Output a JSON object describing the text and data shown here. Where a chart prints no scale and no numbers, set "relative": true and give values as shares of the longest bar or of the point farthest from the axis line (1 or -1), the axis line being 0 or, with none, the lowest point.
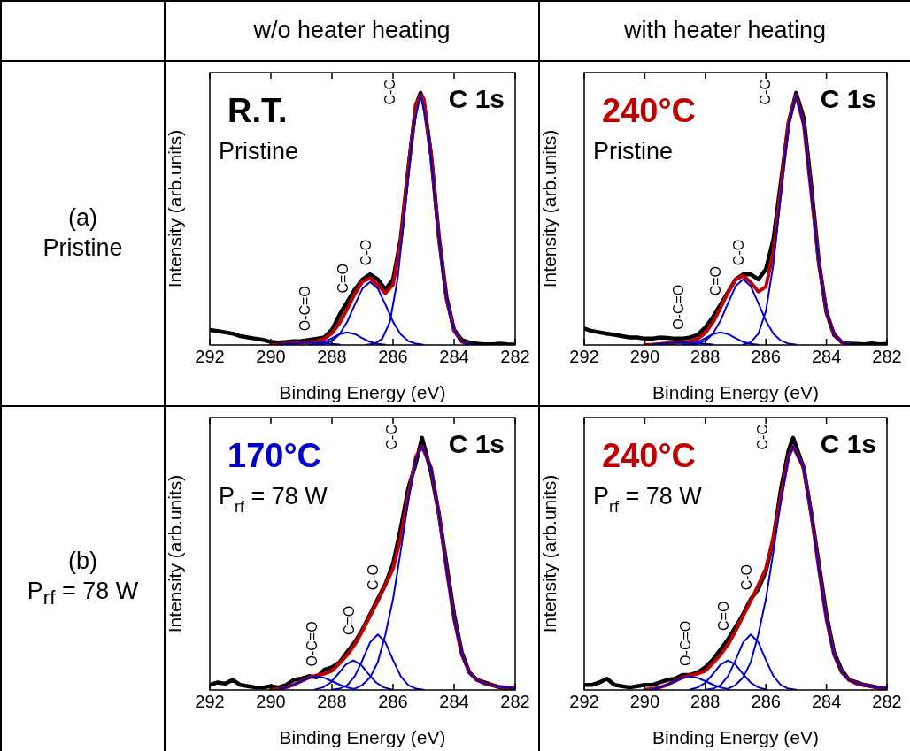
{
  "chart_data": [
    {
      "type": "line",
      "title": "w/o heater heating",
      "subtitle": "(a)\nPristine",
      "xlabel": "Binding Energy (eV)",
      "ylabel": "Intensity (arb.units)",
      "xlim": [
        292,
        282
      ],
      "xticks": [
        292,
        290,
        288,
        286,
        284,
        282
      ],
      "relative": true,
      "series": [
        {
          "color": "#000000",
          "x": [
            292,
            291.75,
            291.5,
            291.25,
            291,
            290.75,
            290.5,
            290.25,
            290,
            289.75,
            289.5,
            289.25,
            289,
            288.75,
            288.5,
            288.25,
            288,
            287.75,
            287.5,
            287.25,
            287,
            286.75,
            286.5,
            286.25,
            286,
            285.75,
            285.5,
            285.25,
            285.1,
            285,
            284.75,
            284.5,
            284.25,
            284,
            283.75,
            283.5,
            283.25,
            283,
            282.75,
            282.5,
            282.25,
            282
          ],
          "values": [
            0.06,
            0.055,
            0.05,
            0.045,
            0.035,
            0.03,
            0.025,
            0.02,
            0.012,
            0.01,
            0.012,
            0.015,
            0.016,
            0.02,
            0.025,
            0.03,
            0.06,
            0.12,
            0.17,
            0.22,
            0.26,
            0.28,
            0.26,
            0.22,
            0.26,
            0.42,
            0.7,
            0.95,
            1.0,
            0.97,
            0.75,
            0.43,
            0.19,
            0.06,
            0.02,
            0.01,
            0.005,
            0.003,
            0.003,
            0.005,
            0.003,
            0.002
          ]
        },
        {
          "color": "#c00000",
          "x": [
            290,
            289.75,
            289.5,
            289.25,
            289,
            288.75,
            288.5,
            288.25,
            288,
            287.75,
            287.5,
            287.25,
            287,
            286.75,
            286.5,
            286.25,
            286,
            285.75,
            285.5,
            285.25,
            285.1,
            285,
            284.75,
            284.5,
            284.25,
            284,
            283.75,
            283.5
          ],
          "values": [
            0.001,
            0.002,
            0.004,
            0.007,
            0.009,
            0.011,
            0.014,
            0.024,
            0.047,
            0.087,
            0.143,
            0.203,
            0.252,
            0.264,
            0.238,
            0.205,
            0.239,
            0.41,
            0.701,
            0.953,
            0.99,
            0.977,
            0.749,
            0.427,
            0.181,
            0.057,
            0.013,
            0.002
          ]
        },
        {
          "color": "#0000cc",
          "x": [
            286.85,
            286.6,
            286.35,
            286.1,
            285.85,
            285.6,
            285.35,
            285.1,
            284.85,
            284.6,
            284.35,
            284.1,
            283.85,
            283.6,
            283.35
          ],
          "values": [
            0.001,
            0.005,
            0.025,
            0.093,
            0.262,
            0.548,
            0.854,
            0.99,
            0.854,
            0.548,
            0.262,
            0.093,
            0.025,
            0.005,
            0.001
          ]
        },
        {
          "color": "#0000cc",
          "x": [
            288.5,
            288.25,
            288,
            287.75,
            287.5,
            287.25,
            287,
            286.75,
            286.5,
            286.25,
            286,
            285.75,
            285.5,
            285.25,
            285
          ],
          "values": [
            0.001,
            0.005,
            0.016,
            0.042,
            0.092,
            0.16,
            0.224,
            0.25,
            0.224,
            0.16,
            0.092,
            0.042,
            0.016,
            0.005,
            0.001
          ]
        },
        {
          "color": "#0000cc",
          "x": [
            288.75,
            288.5,
            288.25,
            288,
            287.75,
            287.5,
            287.25,
            287,
            286.75,
            286.5,
            286.25
          ],
          "values": [
            0.001,
            0.004,
            0.012,
            0.027,
            0.043,
            0.05,
            0.043,
            0.027,
            0.012,
            0.004,
            0.001
          ]
        },
        {
          "color": "#0000cc",
          "x": [
            289.75,
            289.5,
            289.25,
            289,
            288.75,
            288.5,
            288.25,
            288,
            287.75
          ],
          "values": [
            0.002,
            0.004,
            0.007,
            0.009,
            0.01,
            0.009,
            0.007,
            0.004,
            0.002
          ]
        }
      ],
      "annotations": [
        "R.T.",
        "Pristine",
        "C 1s",
        "C-C",
        "C-O",
        "C=O",
        "O-C=O"
      ]
    },
    {
      "type": "line",
      "title": "with heater heating",
      "xlabel": "Binding Energy (eV)",
      "ylabel": "Intensity (arb.units)",
      "xlim": [
        292,
        282
      ],
      "xticks": [
        292,
        290,
        288,
        286,
        284,
        282
      ],
      "relative": true,
      "series": [
        {
          "color": "#000000",
          "x": [
            292,
            291.75,
            291.5,
            291.25,
            291,
            290.75,
            290.5,
            290.25,
            290,
            289.75,
            289.5,
            289.25,
            289,
            288.75,
            288.5,
            288.25,
            288,
            287.75,
            287.5,
            287.25,
            287,
            286.75,
            286.5,
            286.25,
            286,
            285.75,
            285.5,
            285.25,
            285,
            284.75,
            284.5,
            284.25,
            284,
            283.75,
            283.5,
            283.25,
            283,
            282.75,
            282.5,
            282.25,
            282
          ],
          "values": [
            0.065,
            0.055,
            0.05,
            0.045,
            0.04,
            0.035,
            0.03,
            0.03,
            0.025,
            0.025,
            0.03,
            0.028,
            0.025,
            0.025,
            0.03,
            0.04,
            0.07,
            0.11,
            0.16,
            0.21,
            0.26,
            0.28,
            0.28,
            0.26,
            0.3,
            0.42,
            0.65,
            0.88,
            1.0,
            0.9,
            0.63,
            0.33,
            0.13,
            0.04,
            0.012,
            0.005,
            0.004,
            0.003,
            0.006,
            0.003,
            0.004
          ]
        },
        {
          "color": "#c00000",
          "x": [
            290,
            289.75,
            289.5,
            289.25,
            289,
            288.75,
            288.5,
            288.25,
            288,
            287.75,
            287.5,
            287.25,
            287,
            286.75,
            286.5,
            286.25,
            286,
            285.75,
            285.5,
            285.25,
            285,
            284.75,
            284.5,
            284.25,
            284,
            283.75,
            283.5,
            283.25
          ],
          "values": [
            0.001,
            0.002,
            0.004,
            0.007,
            0.009,
            0.011,
            0.014,
            0.024,
            0.048,
            0.089,
            0.147,
            0.209,
            0.26,
            0.274,
            0.248,
            0.211,
            0.231,
            0.369,
            0.624,
            0.887,
            0.99,
            0.873,
            0.601,
            0.322,
            0.134,
            0.044,
            0.011,
            0.002
          ]
        },
        {
          "color": "#0000cc",
          "x": [
            286.75,
            286.5,
            286.25,
            286,
            285.75,
            285.5,
            285.25,
            285,
            284.75,
            284.5,
            284.25,
            284,
            283.75,
            283.5,
            283.25
          ],
          "values": [
            0.002,
            0.011,
            0.044,
            0.134,
            0.322,
            0.601,
            0.873,
            0.99,
            0.873,
            0.601,
            0.322,
            0.134,
            0.044,
            0.011,
            0.002
          ]
        },
        {
          "color": "#0000cc",
          "x": [
            288.5,
            288.25,
            288,
            287.75,
            287.5,
            287.25,
            287,
            286.75,
            286.5,
            286.25,
            286,
            285.75,
            285.5,
            285.25,
            285
          ],
          "values": [
            0.001,
            0.005,
            0.017,
            0.044,
            0.096,
            0.166,
            0.233,
            0.26,
            0.233,
            0.166,
            0.096,
            0.044,
            0.017,
            0.005,
            0.001
          ]
        },
        {
          "color": "#0000cc",
          "x": [
            288.75,
            288.5,
            288.25,
            288,
            287.75,
            287.5,
            287.25,
            287,
            286.75,
            286.5,
            286.25
          ],
          "values": [
            0.001,
            0.004,
            0.012,
            0.027,
            0.043,
            0.05,
            0.043,
            0.027,
            0.012,
            0.004,
            0.001
          ]
        },
        {
          "color": "#0000cc",
          "x": [
            289.75,
            289.5,
            289.25,
            289,
            288.75,
            288.5,
            288.25,
            288,
            287.75
          ],
          "values": [
            0.002,
            0.004,
            0.007,
            0.009,
            0.01,
            0.009,
            0.007,
            0.004,
            0.002
          ]
        }
      ],
      "annotations": [
        "240°C",
        "Pristine",
        "C 1s",
        "C-C",
        "C-O",
        "C=O",
        "O-C=O"
      ]
    },
    {
      "type": "line",
      "subtitle": "(b)\nP$_{rf}$ = 78 W",
      "xlabel": "Binding Energy (eV)",
      "ylabel": "Intensity (arb.units)",
      "xlim": [
        292,
        282
      ],
      "xticks": [
        292,
        290,
        288,
        286,
        284,
        282
      ],
      "relative": true,
      "series": [
        {
          "color": "#000000",
          "x": [
            292,
            291.75,
            291.5,
            291.25,
            291,
            290.75,
            290.5,
            290.25,
            290,
            289.75,
            289.5,
            289.25,
            289,
            288.75,
            288.5,
            288.25,
            288,
            287.75,
            287.5,
            287.25,
            287,
            286.75,
            286.5,
            286.25,
            286,
            285.75,
            285.5,
            285.25,
            285.05,
            284.75,
            284.5,
            284.25,
            284,
            283.75,
            283.5,
            283.25,
            283,
            282.75,
            282.5,
            282.25,
            282
          ],
          "values": [
            0.02,
            0.03,
            0.025,
            0.04,
            0.02,
            0.015,
            0.01,
            0.01,
            0.015,
            0.01,
            0.02,
            0.04,
            0.045,
            0.055,
            0.05,
            0.08,
            0.09,
            0.11,
            0.15,
            0.19,
            0.24,
            0.3,
            0.36,
            0.42,
            0.5,
            0.64,
            0.8,
            0.9,
            1.0,
            0.86,
            0.7,
            0.5,
            0.3,
            0.15,
            0.07,
            0.04,
            0.03,
            0.02,
            0.01,
            0.005,
            0.01
          ]
        },
        {
          "color": "#c00000",
          "x": [
            290,
            289.75,
            289.5,
            289.25,
            289,
            288.75,
            288.5,
            288.25,
            288,
            287.75,
            287.5,
            287.25,
            287,
            286.75,
            286.5,
            286.25,
            286,
            285.75,
            285.5,
            285.25,
            285.05,
            284.75,
            284.5,
            284.25,
            284,
            283.75,
            283.5,
            283.25,
            283,
            282.75,
            282.5,
            282.25,
            282
          ],
          "values": [
            0.001,
            0.004,
            0.01,
            0.021,
            0.035,
            0.049,
            0.058,
            0.064,
            0.076,
            0.106,
            0.139,
            0.18,
            0.234,
            0.294,
            0.353,
            0.416,
            0.481,
            0.605,
            0.769,
            0.925,
            0.965,
            0.88,
            0.7,
            0.48,
            0.28,
            0.14,
            0.07,
            0.04,
            0.025,
            0.018,
            0.013,
            0.01,
            0.008
          ]
        },
        {
          "color": "#0000cc",
          "x": [
            287.25,
            287,
            286.75,
            286.5,
            286.25,
            286,
            285.75,
            285.5,
            285.25,
            285.05,
            284.75,
            284.5,
            284.25,
            284,
            283.75,
            283.5,
            283.25,
            283,
            282.75,
            282.5,
            282.25,
            282
          ],
          "values": [
            0.005,
            0.02,
            0.05,
            0.11,
            0.22,
            0.36,
            0.55,
            0.75,
            0.92,
            0.965,
            0.88,
            0.7,
            0.48,
            0.28,
            0.14,
            0.07,
            0.04,
            0.025,
            0.018,
            0.013,
            0.01,
            0.008
          ]
        },
        {
          "color": "#0000cc",
          "x": [
            288,
            287.75,
            287.5,
            287.25,
            287,
            286.75,
            286.5,
            286.25,
            286,
            285.75,
            285.5,
            285.25,
            285
          ],
          "values": [
            0.001,
            0.005,
            0.019,
            0.055,
            0.119,
            0.189,
            0.22,
            0.189,
            0.119,
            0.055,
            0.019,
            0.005,
            0.001
          ]
        },
        {
          "color": "#0000cc",
          "x": [
            288.55,
            288.3,
            288.05,
            287.8,
            287.55,
            287.3,
            287.05,
            286.8,
            286.55,
            286.3,
            286.05
          ],
          "values": [
            0.002,
            0.01,
            0.029,
            0.063,
            0.1,
            0.117,
            0.1,
            0.063,
            0.029,
            0.01,
            0.002
          ]
        },
        {
          "color": "#0000cc",
          "x": [
            289.75,
            289.5,
            289.25,
            289,
            288.75,
            288.5,
            288.25,
            288,
            287.75,
            287.5,
            287.25
          ],
          "values": [
            0.004,
            0.01,
            0.021,
            0.035,
            0.048,
            0.053,
            0.048,
            0.035,
            0.021,
            0.01,
            0.004
          ]
        }
      ],
      "annotations": [
        "170°C",
        "P$_{rf}$ = 78 W",
        "C 1s",
        "C-C",
        "C-O",
        "C=O",
        "O-C=O"
      ]
    },
    {
      "type": "line",
      "xlabel": "Binding Energy (eV)",
      "ylabel": "Intensity (arb.units)",
      "xlim": [
        292,
        282
      ],
      "xticks": [
        292,
        290,
        288,
        286,
        284,
        282
      ],
      "relative": true,
      "series": [
        {
          "color": "#000000",
          "x": [
            292,
            291.75,
            291.5,
            291.25,
            291,
            290.75,
            290.5,
            290.25,
            290,
            289.75,
            289.5,
            289.25,
            289,
            288.75,
            288.5,
            288.25,
            288,
            287.75,
            287.5,
            287.25,
            287,
            286.75,
            286.5,
            286.25,
            286,
            285.75,
            285.5,
            285.25,
            285.1,
            284.75,
            284.5,
            284.25,
            284,
            283.75,
            283.5,
            283.25,
            283,
            282.75,
            282.5,
            282.25,
            282
          ],
          "values": [
            0.02,
            0.02,
            0.03,
            0.045,
            0.02,
            0.015,
            0.01,
            0.015,
            0.02,
            0.02,
            0.03,
            0.04,
            0.045,
            0.06,
            0.06,
            0.07,
            0.09,
            0.12,
            0.16,
            0.2,
            0.25,
            0.3,
            0.36,
            0.4,
            0.47,
            0.6,
            0.8,
            0.95,
            1.0,
            0.88,
            0.7,
            0.5,
            0.3,
            0.15,
            0.08,
            0.04,
            0.03,
            0.02,
            0.015,
            0.008,
            0.008
          ]
        },
        {
          "color": "#c00000",
          "x": [
            290,
            289.75,
            289.5,
            289.25,
            289,
            288.75,
            288.5,
            288.25,
            288,
            287.75,
            287.5,
            287.25,
            287,
            286.75,
            286.5,
            286.25,
            286,
            285.75,
            285.5,
            285.25,
            285.1,
            284.75,
            284.5,
            284.25,
            284,
            283.75,
            283.5,
            283.25,
            283,
            282.75,
            282.5,
            282.25,
            282
          ],
          "values": [
            0.001,
            0.004,
            0.01,
            0.021,
            0.035,
            0.049,
            0.058,
            0.064,
            0.076,
            0.106,
            0.139,
            0.18,
            0.234,
            0.294,
            0.353,
            0.416,
            0.481,
            0.605,
            0.769,
            0.925,
            0.965,
            0.88,
            0.7,
            0.48,
            0.28,
            0.14,
            0.07,
            0.04,
            0.025,
            0.018,
            0.013,
            0.01,
            0.008
          ]
        },
        {
          "color": "#0000cc",
          "x": [
            287.25,
            287,
            286.75,
            286.5,
            286.25,
            286,
            285.75,
            285.5,
            285.25,
            285.1,
            284.75,
            284.5,
            284.25,
            284,
            283.75,
            283.5,
            283.25,
            283,
            282.75,
            282.5,
            282.25,
            282
          ],
          "values": [
            0.005,
            0.02,
            0.05,
            0.11,
            0.22,
            0.36,
            0.55,
            0.75,
            0.92,
            0.965,
            0.88,
            0.7,
            0.48,
            0.28,
            0.14,
            0.07,
            0.04,
            0.025,
            0.018,
            0.013,
            0.01,
            0.008
          ]
        },
        {
          "color": "#0000cc",
          "x": [
            288,
            287.75,
            287.5,
            287.25,
            287,
            286.75,
            286.5,
            286.25,
            286,
            285.75,
            285.5,
            285.25,
            285
          ],
          "values": [
            0.001,
            0.005,
            0.019,
            0.055,
            0.119,
            0.189,
            0.22,
            0.189,
            0.119,
            0.055,
            0.019,
            0.005,
            0.001
          ]
        },
        {
          "color": "#0000cc",
          "x": [
            288.5,
            288.25,
            288,
            287.75,
            287.5,
            287.25,
            287,
            286.75,
            286.5,
            286.25,
            286
          ],
          "values": [
            0.002,
            0.01,
            0.029,
            0.063,
            0.1,
            0.117,
            0.1,
            0.063,
            0.029,
            0.01,
            0.002
          ]
        },
        {
          "color": "#0000cc",
          "x": [
            289.75,
            289.5,
            289.25,
            289,
            288.75,
            288.5,
            288.25,
            288,
            287.75,
            287.5,
            287.25
          ],
          "values": [
            0.004,
            0.01,
            0.021,
            0.035,
            0.048,
            0.053,
            0.048,
            0.035,
            0.021,
            0.01,
            0.004
          ]
        }
      ],
      "annotations": [
        "240°C",
        "P$_{rf}$ = 78 W",
        "C 1s",
        "C-C",
        "C-O",
        "C=O",
        "O-C=O"
      ]
    }
  ]
}
